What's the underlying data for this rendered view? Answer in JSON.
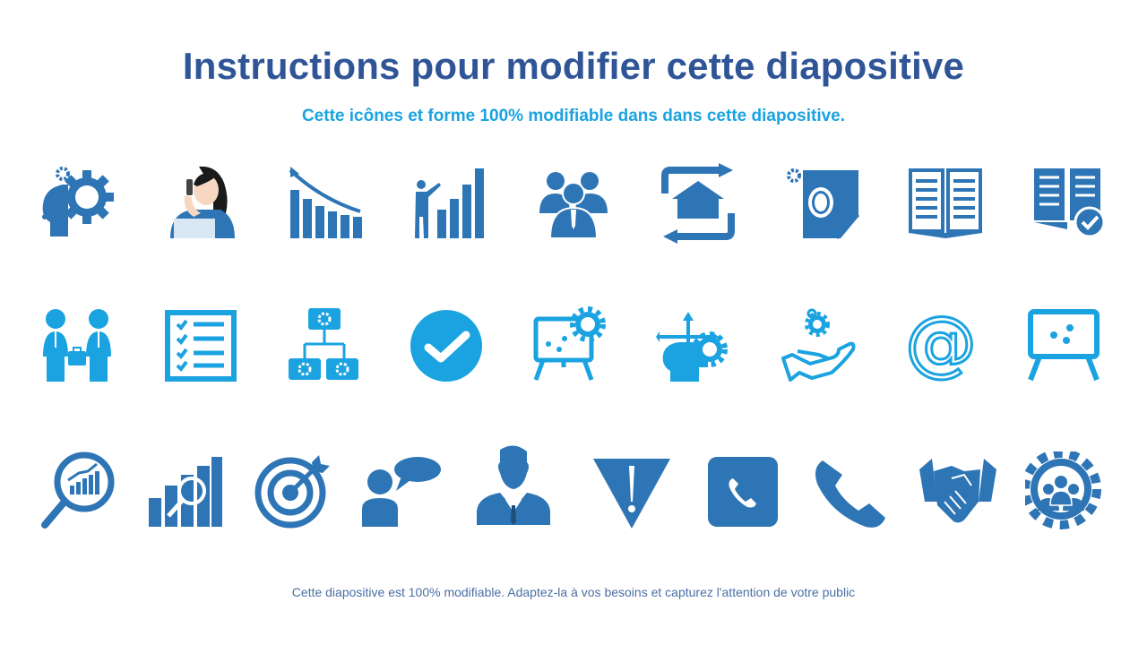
{
  "slide": {
    "title": "Instructions pour modifier cette diapositive",
    "subtitle": "Cette icônes et forme 100% modifiable dans dans cette diapositive.",
    "footer": "Cette diapositive est 100% modifiable. Adaptez-la à vos besoins et capturez l'attention de votre public"
  },
  "colors": {
    "title": "#2f5597",
    "subtitle": "#1aa3e0",
    "icon_dark": "#2e75b6",
    "icon_light": "#1aa3e0",
    "footer": "#4a6fa5"
  },
  "icons": {
    "row1": [
      "head-gear-icon",
      "woman-phone-icon",
      "declining-chart-icon",
      "presenter-chart-icon",
      "team-icon",
      "home-refresh-icon",
      "gear-document-icon",
      "open-book-icon",
      "book-check-icon"
    ],
    "row2": [
      "two-people-briefcase-icon",
      "checklist-icon",
      "gear-hierarchy-icon",
      "checkmark-circle-icon",
      "board-gear-icon",
      "head-directions-icon",
      "hand-gear-icon",
      "at-sign-icon",
      "presentation-board-icon"
    ],
    "row3": [
      "search-chart-icon",
      "bar-chart-magnifier-icon",
      "target-arrow-icon",
      "person-speech-icon",
      "businessman-icon",
      "warning-triangle-icon",
      "phone-square-icon",
      "phone-icon",
      "handshake-icon",
      "gear-team-icon"
    ]
  }
}
